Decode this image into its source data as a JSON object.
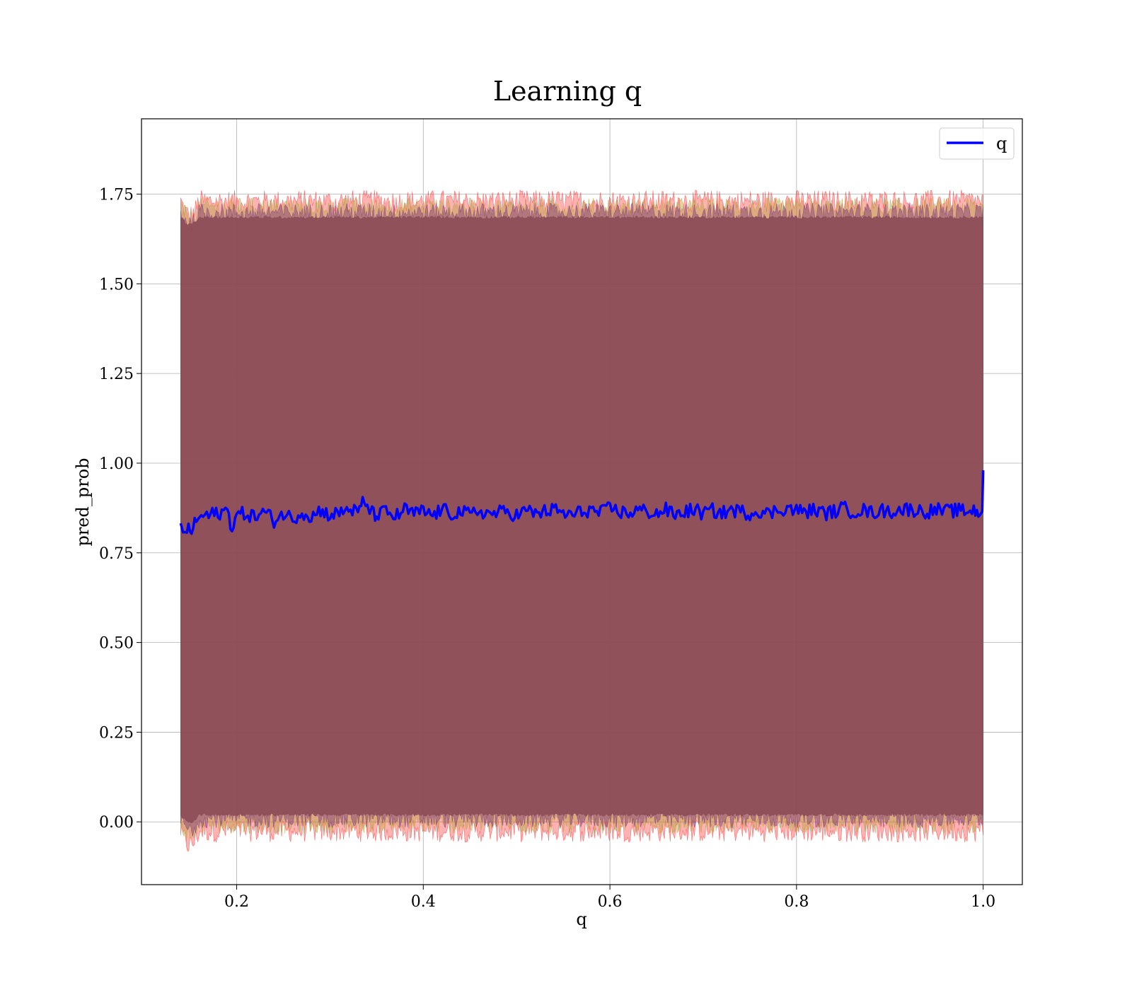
{
  "chart_data": {
    "type": "line",
    "title": "Learning q",
    "xlabel": "q",
    "ylabel": "pred_prob",
    "xlim": [
      0.098,
      1.042
    ],
    "ylim": [
      -0.175,
      1.96
    ],
    "x_ticks": [
      0.2,
      0.4,
      0.6,
      0.8,
      1.0
    ],
    "x_tick_labels": [
      "0.2",
      "0.4",
      "0.6",
      "0.8",
      "1.0"
    ],
    "y_ticks": [
      0.0,
      0.25,
      0.5,
      0.75,
      1.0,
      1.25,
      1.5,
      1.75
    ],
    "y_tick_labels": [
      "0.00",
      "0.25",
      "0.50",
      "0.75",
      "1.00",
      "1.25",
      "1.50",
      "1.75"
    ],
    "grid": true,
    "legend": {
      "position": "top-right",
      "entries": [
        "q"
      ]
    },
    "series": [
      {
        "name": "q",
        "color": "#0000ff",
        "x": [
          0.14,
          0.145,
          0.15,
          0.155,
          0.16,
          0.17,
          0.18,
          0.19,
          0.195,
          0.2,
          0.21,
          0.22,
          0.23,
          0.24,
          0.25,
          0.26,
          0.27,
          0.28,
          0.29,
          0.3,
          0.31,
          0.32,
          0.33,
          0.335,
          0.34,
          0.345,
          0.35,
          0.36,
          0.37,
          0.38,
          0.39,
          0.4,
          0.41,
          0.42,
          0.43,
          0.44,
          0.45,
          0.46,
          0.47,
          0.48,
          0.49,
          0.5,
          0.51,
          0.52,
          0.53,
          0.54,
          0.55,
          0.56,
          0.57,
          0.58,
          0.59,
          0.6,
          0.61,
          0.62,
          0.63,
          0.64,
          0.65,
          0.66,
          0.67,
          0.68,
          0.69,
          0.7,
          0.71,
          0.72,
          0.73,
          0.74,
          0.75,
          0.76,
          0.77,
          0.78,
          0.79,
          0.8,
          0.81,
          0.82,
          0.83,
          0.84,
          0.85,
          0.86,
          0.87,
          0.88,
          0.89,
          0.9,
          0.91,
          0.92,
          0.93,
          0.94,
          0.95,
          0.96,
          0.97,
          0.98,
          0.99,
          0.995,
          0.999,
          1.0
        ],
        "y": [
          0.82,
          0.815,
          0.81,
          0.83,
          0.85,
          0.855,
          0.86,
          0.868,
          0.82,
          0.855,
          0.86,
          0.85,
          0.865,
          0.84,
          0.86,
          0.845,
          0.865,
          0.85,
          0.87,
          0.855,
          0.86,
          0.875,
          0.86,
          0.89,
          0.885,
          0.86,
          0.855,
          0.865,
          0.85,
          0.87,
          0.86,
          0.865,
          0.855,
          0.87,
          0.86,
          0.865,
          0.855,
          0.868,
          0.858,
          0.862,
          0.865,
          0.855,
          0.868,
          0.86,
          0.865,
          0.87,
          0.86,
          0.855,
          0.865,
          0.87,
          0.86,
          0.875,
          0.865,
          0.86,
          0.87,
          0.865,
          0.86,
          0.87,
          0.855,
          0.865,
          0.87,
          0.86,
          0.868,
          0.86,
          0.87,
          0.865,
          0.86,
          0.868,
          0.858,
          0.87,
          0.875,
          0.868,
          0.865,
          0.87,
          0.86,
          0.865,
          0.875,
          0.865,
          0.87,
          0.862,
          0.868,
          0.865,
          0.87,
          0.872,
          0.868,
          0.865,
          0.87,
          0.865,
          0.868,
          0.866,
          0.87,
          0.862,
          0.865,
          0.98
        ]
      }
    ],
    "bands": [
      {
        "color": "#ff0000",
        "opacity": 0.3,
        "lower": -0.025,
        "upper": 1.73,
        "noise": 0.032,
        "start_dip": 0.04
      },
      {
        "color": "#b5a040",
        "opacity": 0.45,
        "lower": -0.008,
        "upper": 1.715,
        "noise": 0.025,
        "start_dip": 0.03
      },
      {
        "color": "#7a3a7a",
        "opacity": 0.45,
        "lower": 0.008,
        "upper": 1.7,
        "noise": 0.025,
        "start_dip": 0.03
      },
      {
        "color": "#8b4a55",
        "opacity": 0.85,
        "lower": 0.02,
        "upper": 1.685,
        "noise": 0.004,
        "start_dip": 0.02
      }
    ]
  }
}
